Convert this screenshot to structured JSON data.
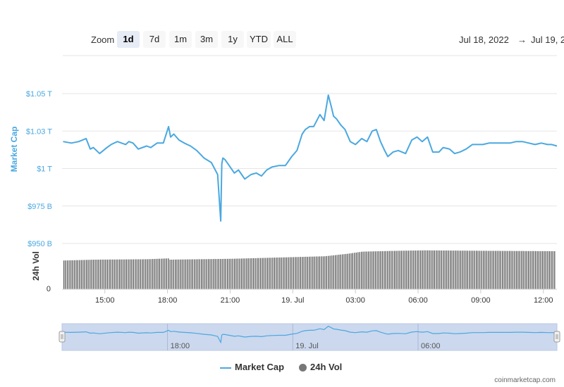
{
  "toolbar": {
    "zoom_label": "Zoom",
    "buttons": [
      "1d",
      "7d",
      "1m",
      "3m",
      "1y",
      "YTD",
      "ALL"
    ],
    "active": "1d",
    "date_from": "Jul 18, 2022",
    "arrow": "→",
    "date_to": "Jul 19, 2"
  },
  "legend": {
    "market_cap": "Market Cap",
    "volume": "24h Vol"
  },
  "credit": "coinmarketcap.com",
  "colors": {
    "market_cap": "#4aa8e0",
    "volume": "#555555",
    "navigator_fill": "#ccd8ee"
  },
  "chart_data": {
    "type": "line",
    "x_tick_labels": [
      "15:00",
      "18:00",
      "21:00",
      "19. Jul",
      "03:00",
      "06:00",
      "09:00",
      "12:00"
    ],
    "x_ticks_hours": [
      2,
      5,
      8,
      11,
      14,
      17,
      20,
      23
    ],
    "x_range_hours": [
      -0.05,
      23.65
    ],
    "series": [
      {
        "name": "Market Cap",
        "axis": "Market Cap",
        "unit": "USD",
        "ylim": [
          950,
          1050
        ],
        "ytick_labels": [
          "$950 B",
          "$975 B",
          "$1 T",
          "$1.03 T",
          "$1.05 T"
        ],
        "ytick_values": [
          950,
          975,
          1000,
          1025,
          1050
        ],
        "x_hours": [
          0,
          0.4,
          0.75,
          1.1,
          1.3,
          1.45,
          1.75,
          2.1,
          2.3,
          2.6,
          3.0,
          3.15,
          3.35,
          3.6,
          4.0,
          4.2,
          4.5,
          4.8,
          5.05,
          5.15,
          5.3,
          5.55,
          5.8,
          6.1,
          6.4,
          6.75,
          7.1,
          7.4,
          7.55,
          7.6,
          7.65,
          7.75,
          7.95,
          8.2,
          8.4,
          8.55,
          8.7,
          9.0,
          9.25,
          9.5,
          9.75,
          10.0,
          10.35,
          10.65,
          10.95,
          11.2,
          11.45,
          11.6,
          11.8,
          12.0,
          12.3,
          12.5,
          12.7,
          12.85,
          12.95,
          13.1,
          13.3,
          13.5,
          13.75,
          14.0,
          14.3,
          14.55,
          14.8,
          15.0,
          15.2,
          15.4,
          15.55,
          15.8,
          16.05,
          16.4,
          16.7,
          16.95,
          17.2,
          17.45,
          17.7,
          18.0,
          18.2,
          18.5,
          18.75,
          19.0,
          19.3,
          19.6,
          19.9,
          20.1,
          20.4,
          20.7,
          21.05,
          21.4,
          21.7,
          22.0,
          22.3,
          22.6,
          22.9,
          23.2,
          23.4,
          23.65
        ],
        "values": [
          1018,
          1017,
          1018,
          1020,
          1013,
          1014,
          1010,
          1014,
          1016,
          1018,
          1016,
          1018,
          1017,
          1013,
          1015,
          1014,
          1017,
          1017,
          1028,
          1021,
          1023,
          1019,
          1017,
          1015,
          1012,
          1007,
          1004,
          996,
          965,
          1003,
          1007,
          1006,
          1002,
          997,
          999,
          996,
          993,
          996,
          997,
          995,
          999,
          1001,
          1002,
          1002,
          1008,
          1012,
          1023,
          1026,
          1028,
          1028,
          1036,
          1032,
          1049,
          1041,
          1035,
          1033,
          1029,
          1026,
          1018,
          1016,
          1020,
          1018,
          1025,
          1026,
          1018,
          1012,
          1008,
          1011,
          1012,
          1010,
          1019,
          1021,
          1018,
          1021,
          1011,
          1011,
          1014,
          1013,
          1010,
          1011,
          1013,
          1016,
          1016,
          1016,
          1017,
          1017,
          1017,
          1017,
          1018,
          1018,
          1017,
          1016,
          1017,
          1016,
          1016,
          1015
        ]
      },
      {
        "name": "24h Vol",
        "axis": "24h Vol",
        "ytick_labels": [
          "0"
        ],
        "relative_height_breakpoints_hours": [
          0,
          1.5,
          4.0,
          5.0,
          5.05,
          6.5,
          8.0,
          9.5,
          11.0,
          12.5,
          13.6,
          14.3,
          16.0,
          17.3,
          20.0,
          23.5
        ],
        "relative_height_values": [
          0.68,
          0.7,
          0.71,
          0.73,
          0.7,
          0.71,
          0.72,
          0.74,
          0.76,
          0.78,
          0.84,
          0.89,
          0.91,
          0.92,
          0.91,
          0.9
        ]
      }
    ],
    "navigator_x_labels": [
      "18:00",
      "19. Jul",
      "06:00"
    ],
    "navigator_x_hours": [
      5,
      11,
      17
    ],
    "grid": true,
    "legend_position": "bottom-center"
  }
}
